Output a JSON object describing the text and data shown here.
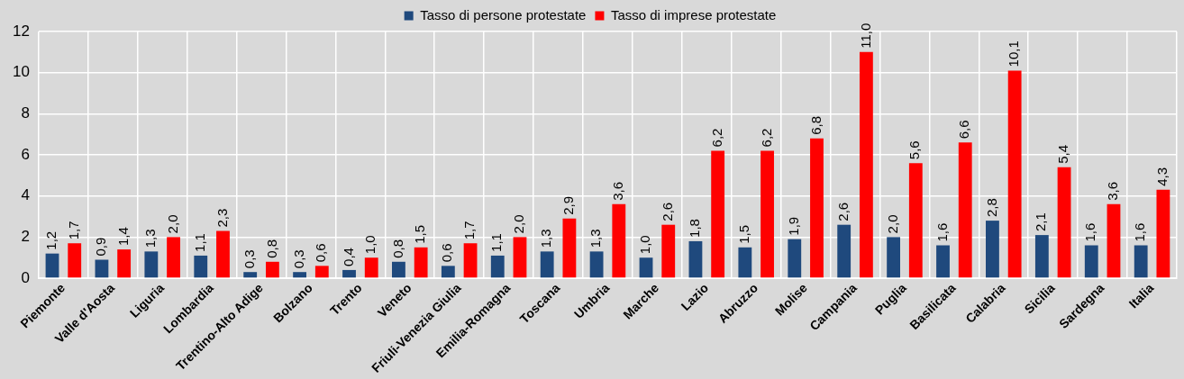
{
  "chart_data": {
    "type": "bar",
    "categories": [
      "Piemonte",
      "Valle d'Aosta",
      "Liguria",
      "Lombardia",
      "Trentino-Alto Adige",
      "Bolzano",
      "Trento",
      "Veneto",
      "Friuli-Venezia Giulia",
      "Emilia-Romagna",
      "Toscana",
      "Umbria",
      "Marche",
      "Lazio",
      "Abruzzo",
      "Molise",
      "Campania",
      "Puglia",
      "Basilicata",
      "Calabria",
      "Sicilia",
      "Sardegna",
      "Italia"
    ],
    "series": [
      {
        "name": "Tasso di persone protestate",
        "color": "#1f497d",
        "values": [
          1.2,
          0.9,
          1.3,
          1.1,
          0.3,
          0.3,
          0.4,
          0.8,
          0.6,
          1.1,
          1.3,
          1.3,
          1.0,
          1.8,
          1.5,
          1.9,
          2.6,
          2.0,
          1.6,
          2.8,
          2.1,
          1.6,
          1.6
        ],
        "value_labels": [
          "1,2",
          "0,9",
          "1,3",
          "1,1",
          "0,3",
          "0,3",
          "0,4",
          "0,8",
          "0,6",
          "1,1",
          "1,3",
          "1,3",
          "1,0",
          "1,8",
          "1,5",
          "1,9",
          "2,6",
          "2,0",
          "1,6",
          "2,8",
          "2,1",
          "1,6",
          "1,6"
        ]
      },
      {
        "name": "Tasso di imprese protestate",
        "color": "#ff0000",
        "values": [
          1.7,
          1.4,
          2.0,
          2.3,
          0.8,
          0.6,
          1.0,
          1.5,
          1.7,
          2.0,
          2.9,
          3.6,
          2.6,
          6.2,
          6.2,
          6.8,
          11.0,
          5.6,
          6.6,
          10.1,
          5.4,
          3.6,
          4.3
        ],
        "value_labels": [
          "1,7",
          "1,4",
          "2,0",
          "2,3",
          "0,8",
          "0,6",
          "1,0",
          "1,5",
          "1,7",
          "2,0",
          "2,9",
          "3,6",
          "2,6",
          "6,2",
          "6,2",
          "6,8",
          "11,0",
          "5,6",
          "6,6",
          "10,1",
          "5,4",
          "3,6",
          "4,3"
        ]
      }
    ],
    "ylim": [
      0,
      12
    ],
    "yticks": [
      0,
      2,
      4,
      6,
      8,
      10,
      12
    ],
    "grid": true,
    "legend": "top"
  }
}
